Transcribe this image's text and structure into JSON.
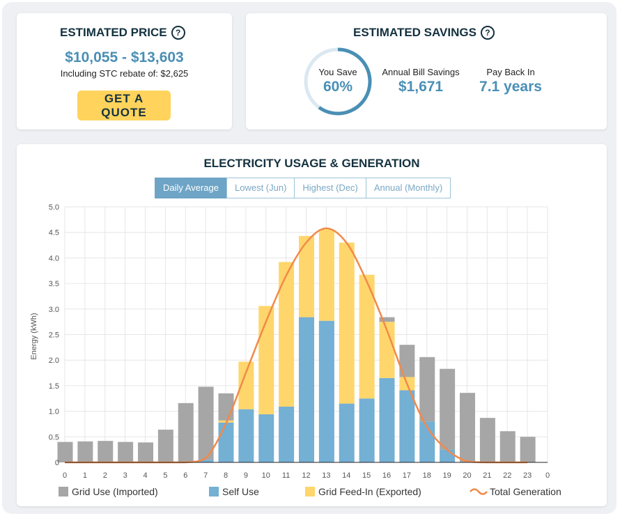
{
  "price": {
    "title": "ESTIMATED PRICE",
    "range": "$10,055 - $13,603",
    "stc_text": "Including STC rebate of: $2,625",
    "quote_button": "GET A QUOTE"
  },
  "savings": {
    "title": "ESTIMATED SAVINGS",
    "you_save_label": "You Save",
    "you_save_value": "60%",
    "you_save_fraction": 0.6,
    "bill_label": "Annual Bill Savings",
    "bill_value": "$1,671",
    "payback_label": "Pay Back In",
    "payback_value": "7.1 years"
  },
  "chart_section": {
    "title": "ELECTRICITY USAGE & GENERATION",
    "tabs": [
      "Daily Average",
      "Lowest (Jun)",
      "Highest (Dec)",
      "Annual (Monthly)"
    ],
    "active_tab": 0
  },
  "colors": {
    "grid_use": "#a6a6a6",
    "self_use": "#74afd4",
    "feed_in": "#ffd66b",
    "generation": "#f08a4b",
    "accent": "#4a8fb5"
  },
  "chart_data": {
    "type": "bar",
    "stacked": true,
    "categories": [
      "0",
      "1",
      "2",
      "3",
      "4",
      "5",
      "6",
      "7",
      "8",
      "9",
      "10",
      "11",
      "12",
      "13",
      "14",
      "15",
      "16",
      "17",
      "18",
      "19",
      "20",
      "21",
      "22",
      "23"
    ],
    "ylabel": "Energy (kWh)",
    "ylim": [
      0,
      5.0
    ],
    "yticks": [
      "0",
      "0.5",
      "1.0",
      "1.5",
      "2.0",
      "2.5",
      "3.0",
      "3.5",
      "4.0",
      "4.5",
      "5.0"
    ],
    "x_axis_extra_tick": "0",
    "grid": true,
    "legend_position": "bottom",
    "series": [
      {
        "name": "Self Use",
        "values": [
          0,
          0,
          0,
          0,
          0,
          0,
          0,
          0.05,
          0.78,
          1.04,
          0.94,
          1.09,
          2.84,
          2.77,
          1.15,
          1.25,
          1.65,
          1.41,
          0.8,
          0.25,
          0,
          0,
          0,
          0
        ]
      },
      {
        "name": "Grid Feed-In (Exported)",
        "values": [
          0,
          0,
          0,
          0,
          0,
          0,
          0,
          0,
          0.04,
          0.93,
          2.12,
          2.83,
          1.59,
          1.79,
          3.15,
          2.42,
          1.1,
          0.26,
          0,
          0,
          0,
          0,
          0,
          0
        ]
      },
      {
        "name": "Grid Use (Imported)",
        "values": [
          0.4,
          0.41,
          0.42,
          0.4,
          0.39,
          0.64,
          1.16,
          1.43,
          0.53,
          0,
          0,
          0,
          0,
          0,
          0,
          0,
          0.09,
          0.63,
          1.26,
          1.58,
          1.36,
          0.87,
          0.61,
          0.5
        ]
      }
    ],
    "line_series": {
      "name": "Total Generation",
      "values": [
        0,
        0,
        0,
        0,
        0,
        0,
        0,
        0.08,
        0.75,
        1.75,
        2.75,
        3.65,
        4.3,
        4.58,
        4.3,
        3.55,
        2.6,
        1.55,
        0.7,
        0.25,
        0.02,
        0,
        0,
        0
      ]
    },
    "legend": [
      "Grid Use (Imported)",
      "Self Use",
      "Grid Feed-In (Exported)",
      "Total Generation"
    ]
  }
}
